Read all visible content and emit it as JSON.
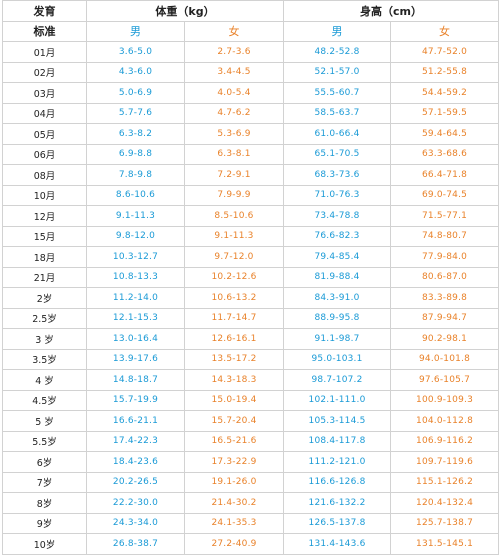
{
  "header": {
    "corner_top": "发育",
    "corner_bottom": "标准",
    "weight_title": "体重（kg）",
    "height_title": "身高（cm）",
    "male": "男",
    "female": "女"
  },
  "colors": {
    "male": "#1a9ad6",
    "female": "#e9822a"
  },
  "rows": [
    {
      "age": "01月",
      "wm": "3.6-5.0",
      "wf": "2.7-3.6",
      "hm": "48.2-52.8",
      "hf": "47.7-52.0"
    },
    {
      "age": "02月",
      "wm": "4.3-6.0",
      "wf": "3.4-4.5",
      "hm": "52.1-57.0",
      "hf": "51.2-55.8"
    },
    {
      "age": "03月",
      "wm": "5.0-6.9",
      "wf": "4.0-5.4",
      "hm": "55.5-60.7",
      "hf": "54.4-59.2"
    },
    {
      "age": "04月",
      "wm": "5.7-7.6",
      "wf": "4.7-6.2",
      "hm": "58.5-63.7",
      "hf": "57.1-59.5"
    },
    {
      "age": "05月",
      "wm": "6.3-8.2",
      "wf": "5.3-6.9",
      "hm": "61.0-66.4",
      "hf": "59.4-64.5"
    },
    {
      "age": "06月",
      "wm": "6.9-8.8",
      "wf": "6.3-8.1",
      "hm": "65.1-70.5",
      "hf": "63.3-68.6"
    },
    {
      "age": "08月",
      "wm": "7.8-9.8",
      "wf": "7.2-9.1",
      "hm": "68.3-73.6",
      "hf": "66.4-71.8"
    },
    {
      "age": "10月",
      "wm": "8.6-10.6",
      "wf": "7.9-9.9",
      "hm": "71.0-76.3",
      "hf": "69.0-74.5"
    },
    {
      "age": "12月",
      "wm": "9.1-11.3",
      "wf": "8.5-10.6",
      "hm": "73.4-78.8",
      "hf": "71.5-77.1"
    },
    {
      "age": "15月",
      "wm": "9.8-12.0",
      "wf": "9.1-11.3",
      "hm": "76.6-82.3",
      "hf": "74.8-80.7"
    },
    {
      "age": "18月",
      "wm": "10.3-12.7",
      "wf": "9.7-12.0",
      "hm": "79.4-85.4",
      "hf": "77.9-84.0"
    },
    {
      "age": "21月",
      "wm": "10.8-13.3",
      "wf": "10.2-12.6",
      "hm": "81.9-88.4",
      "hf": "80.6-87.0"
    },
    {
      "age": "2岁",
      "wm": "11.2-14.0",
      "wf": "10.6-13.2",
      "hm": "84.3-91.0",
      "hf": "83.3-89.8"
    },
    {
      "age": "2.5岁",
      "wm": "12.1-15.3",
      "wf": "11.7-14.7",
      "hm": "88.9-95.8",
      "hf": "87.9-94.7"
    },
    {
      "age": "3 岁",
      "wm": "13.0-16.4",
      "wf": "12.6-16.1",
      "hm": "91.1-98.7",
      "hf": "90.2-98.1"
    },
    {
      "age": "3.5岁",
      "wm": "13.9-17.6",
      "wf": "13.5-17.2",
      "hm": "95.0-103.1",
      "hf": "94.0-101.8"
    },
    {
      "age": "4 岁",
      "wm": "14.8-18.7",
      "wf": "14.3-18.3",
      "hm": "98.7-107.2",
      "hf": "97.6-105.7"
    },
    {
      "age": "4.5岁",
      "wm": "15.7-19.9",
      "wf": "15.0-19.4",
      "hm": "102.1-111.0",
      "hf": "100.9-109.3"
    },
    {
      "age": "5 岁",
      "wm": "16.6-21.1",
      "wf": "15.7-20.4",
      "hm": "105.3-114.5",
      "hf": "104.0-112.8"
    },
    {
      "age": "5.5岁",
      "wm": "17.4-22.3",
      "wf": "16.5-21.6",
      "hm": "108.4-117.8",
      "hf": "106.9-116.2"
    },
    {
      "age": "6岁",
      "wm": "18.4-23.6",
      "wf": "17.3-22.9",
      "hm": "111.2-121.0",
      "hf": "109.7-119.6"
    },
    {
      "age": "7岁",
      "wm": "20.2-26.5",
      "wf": "19.1-26.0",
      "hm": "116.6-126.8",
      "hf": "115.1-126.2"
    },
    {
      "age": "8岁",
      "wm": "22.2-30.0",
      "wf": "21.4-30.2",
      "hm": "121.6-132.2",
      "hf": "120.4-132.4"
    },
    {
      "age": "9岁",
      "wm": "24.3-34.0",
      "wf": "24.1-35.3",
      "hm": "126.5-137.8",
      "hf": "125.7-138.7"
    },
    {
      "age": "10岁",
      "wm": "26.8-38.7",
      "wf": "27.2-40.9",
      "hm": "131.4-143.6",
      "hf": "131.5-145.1"
    }
  ]
}
